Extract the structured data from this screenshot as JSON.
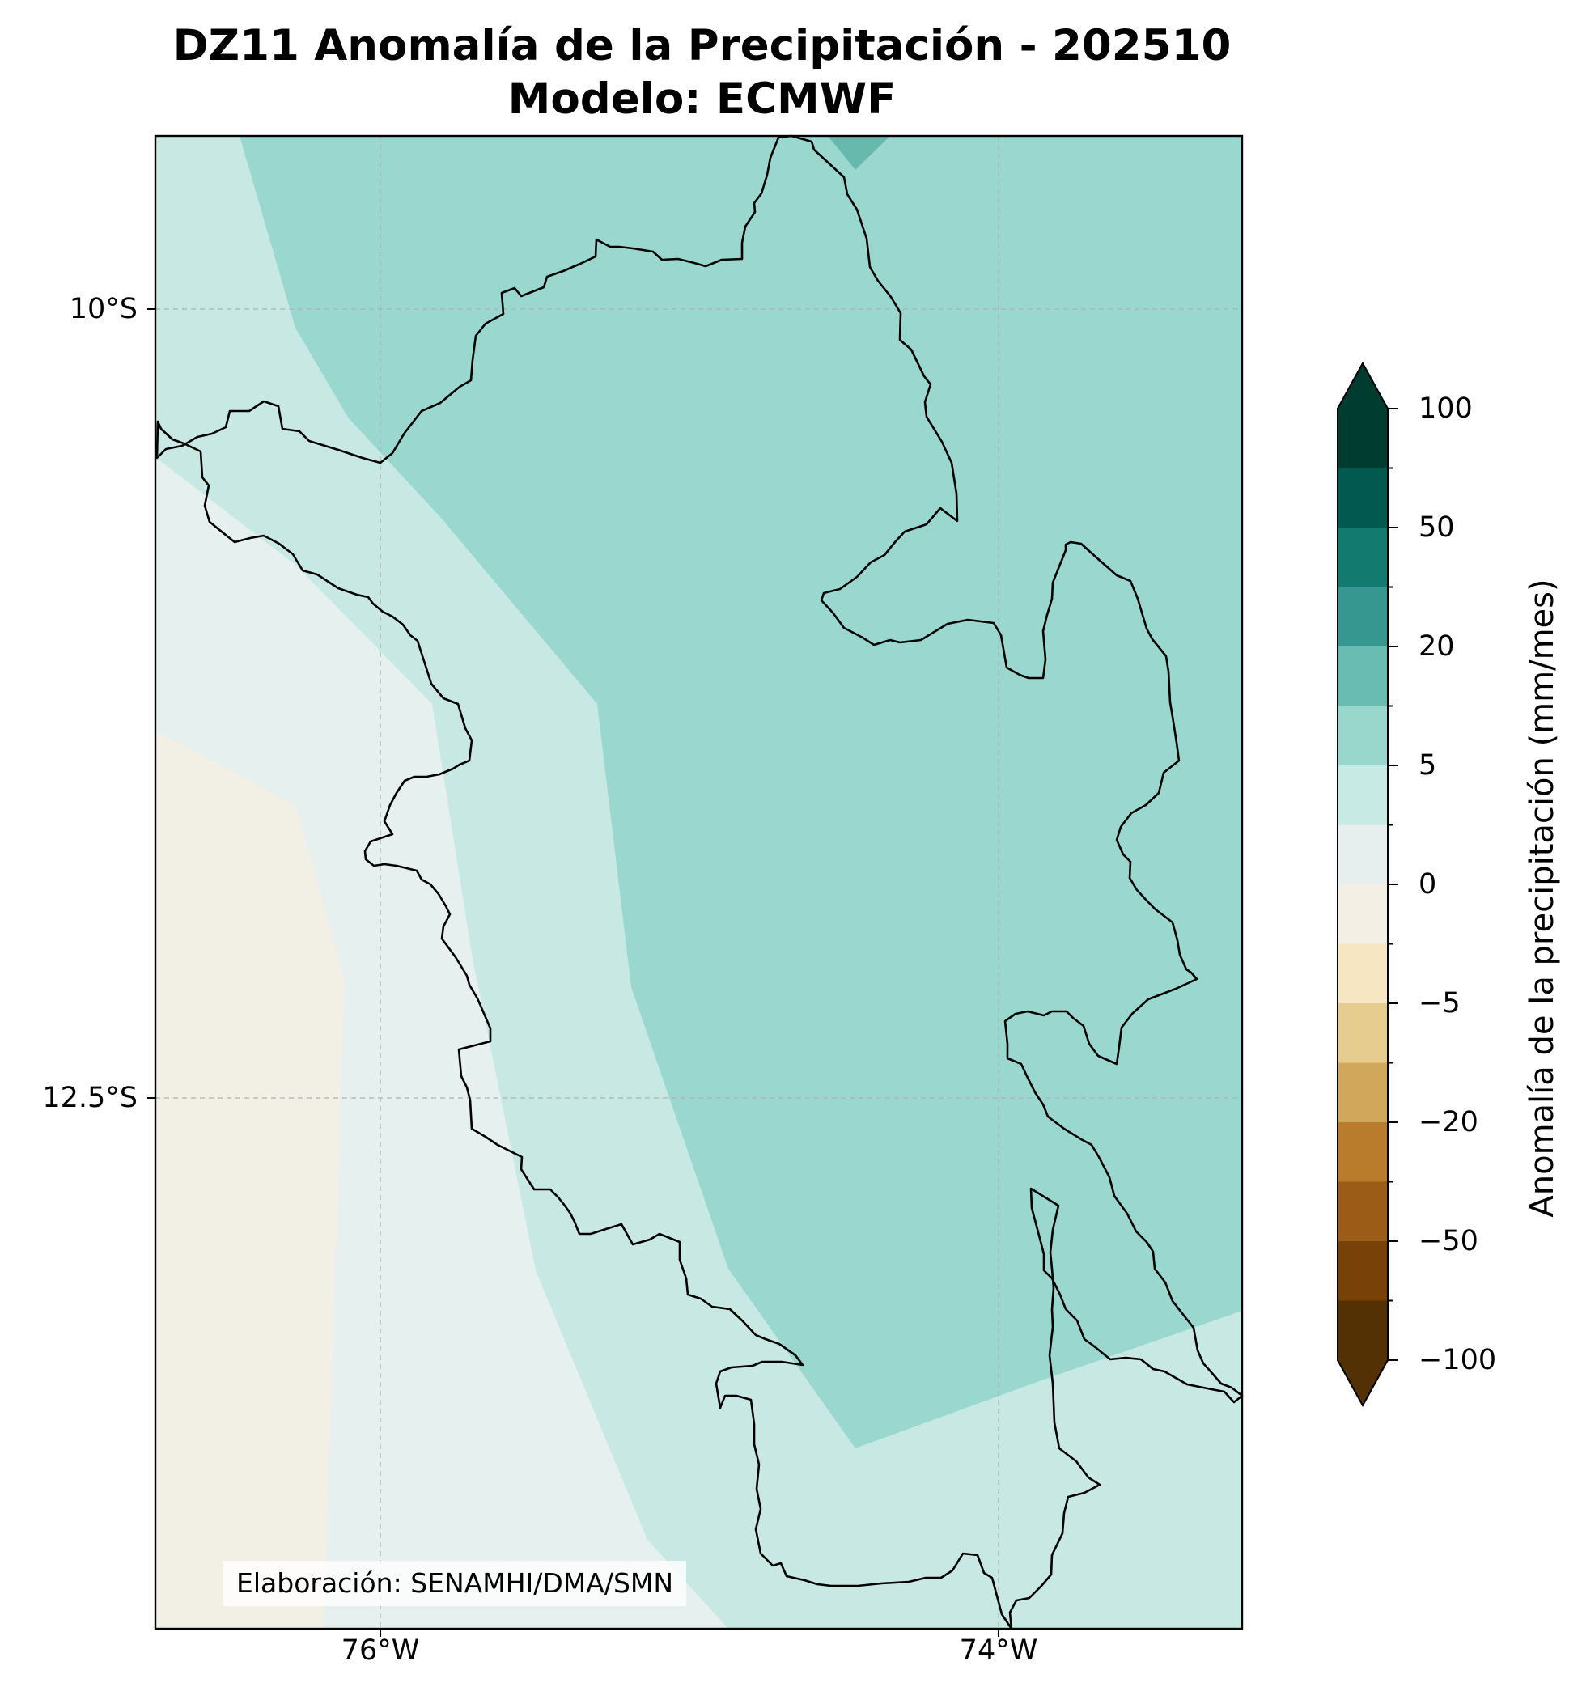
{
  "title": {
    "line1": "DZ11 Anomalía de la Precipitación - 202510",
    "line2": "Modelo: ECMWF"
  },
  "map": {
    "extent_lon": [
      -76.72,
      -73.22
    ],
    "extent_lat": [
      -14.38,
      -9.45
    ],
    "gridlines": true,
    "lat_labels": [
      {
        "value": -10.0,
        "label": "10°S"
      },
      {
        "value": -12.5,
        "label": "12.5°S"
      }
    ],
    "lon_labels": [
      {
        "value": -76.0,
        "label": "76°W"
      },
      {
        "value": -74.0,
        "label": "74°W"
      }
    ],
    "credit": "Elaboración: SENAMHI/DMA/SMN",
    "field_colors": {
      "neg_0_to_-2": "#f2efe5",
      "pos_0_to_2": "#e6f0ee",
      "pos_2_to_5": "#c8e9e3",
      "pos_5_to_10": "#9ad8cf",
      "pos_10_to_20": "#67b9ae"
    }
  },
  "colorbar": {
    "label": "Anomalía de la precipitación (mm/mes)",
    "extend": "both",
    "tick_labels": [
      "100",
      "50",
      "20",
      "5",
      "0",
      "−5",
      "−20",
      "−50",
      "−100"
    ],
    "colors_top_to_bottom": [
      "#003d30",
      "#01594f",
      "#137a70",
      "#35978f",
      "#69bcb1",
      "#99d6cc",
      "#c7eae5",
      "#e6efed",
      "#f3efe5",
      "#f6e6c2",
      "#e6cd8f",
      "#d1a75b",
      "#b97b2c",
      "#9a5c16",
      "#784108",
      "#533105"
    ],
    "lower_extend_color": "#533105",
    "upper_extend_color": "#003c30"
  }
}
